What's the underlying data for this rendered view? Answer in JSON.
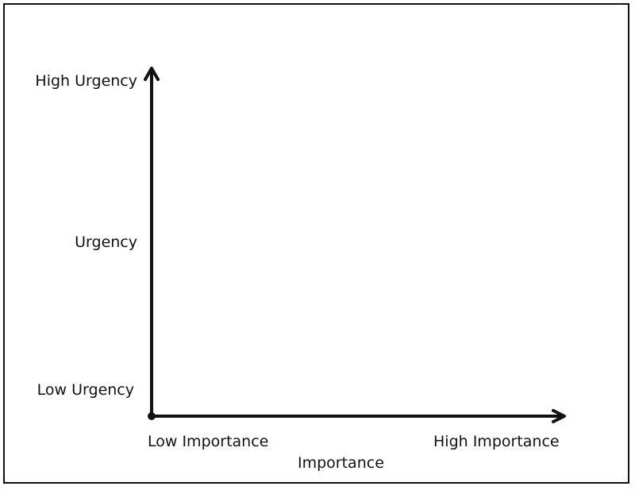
{
  "y_axis": {
    "title": "Urgency",
    "high_label": "High Urgency",
    "low_label": "Low Urgency"
  },
  "x_axis": {
    "title": "Importance",
    "low_label": "Low Importance",
    "high_label": "High Importance"
  },
  "colors": {
    "axis": "#111111",
    "background": "#ffffff"
  }
}
